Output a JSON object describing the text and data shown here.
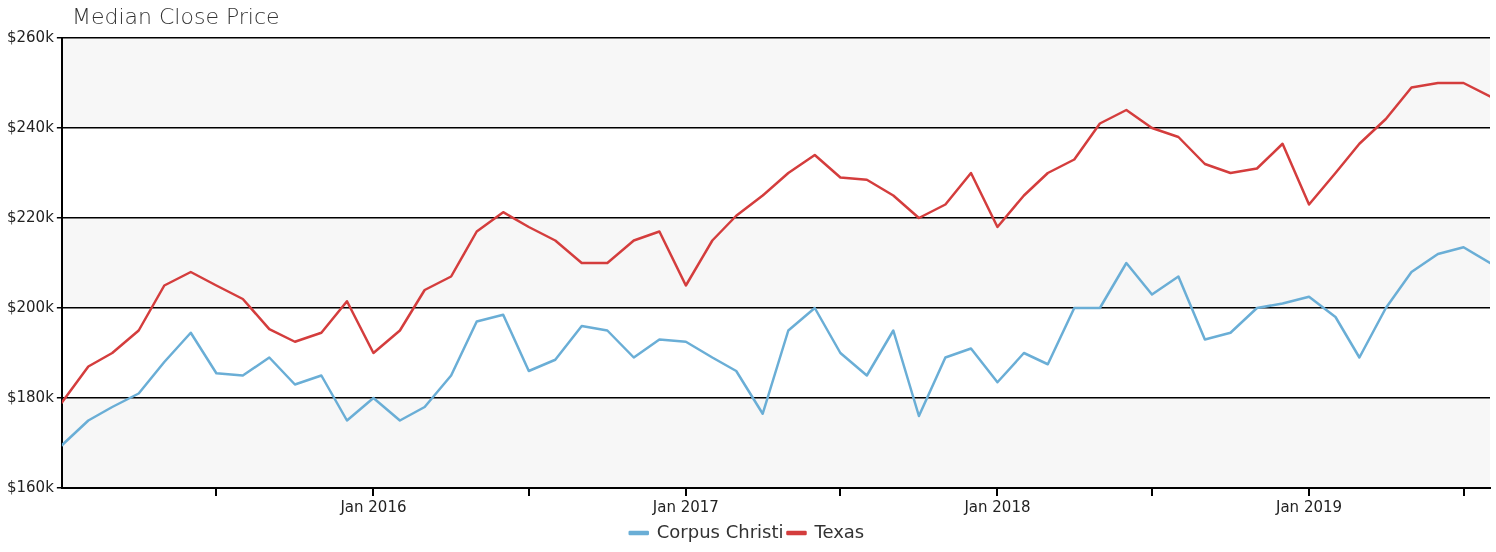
{
  "chart_data": {
    "type": "line",
    "title": "Median Close Price",
    "x": [
      "2015-01",
      "2015-02",
      "2015-03",
      "2015-04",
      "2015-05",
      "2015-06",
      "2015-07",
      "2015-08",
      "2015-09",
      "2015-10",
      "2015-11",
      "2015-12",
      "2016-01",
      "2016-02",
      "2016-03",
      "2016-04",
      "2016-05",
      "2016-06",
      "2016-07",
      "2016-08",
      "2016-09",
      "2016-10",
      "2016-11",
      "2016-12",
      "2017-01",
      "2017-02",
      "2017-03",
      "2017-04",
      "2017-05",
      "2017-06",
      "2017-07",
      "2017-08",
      "2017-09",
      "2017-10",
      "2017-11",
      "2017-12",
      "2018-01",
      "2018-02",
      "2018-03",
      "2018-04",
      "2018-05",
      "2018-06",
      "2018-07",
      "2018-08",
      "2018-09",
      "2018-10",
      "2018-11",
      "2018-12",
      "2019-01",
      "2019-02",
      "2019-03",
      "2019-04",
      "2019-05",
      "2019-06",
      "2019-07",
      "2019-08"
    ],
    "series": [
      {
        "name": "Corpus Christi",
        "color": "#6aaed6",
        "values": [
          169500,
          175000,
          178000,
          181000,
          188000,
          194500,
          185500,
          185000,
          189000,
          183000,
          185000,
          175000,
          180000,
          175000,
          178000,
          185000,
          197000,
          198500,
          186000,
          188500,
          196000,
          195000,
          189000,
          193000,
          192500,
          189000,
          186000,
          176500,
          195000,
          200000,
          190000,
          185000,
          195000,
          176000,
          189000,
          191000,
          183500,
          190000,
          187500,
          200000,
          200000,
          210000,
          203000,
          207000,
          193000,
          194500,
          200000,
          201000,
          202500,
          198000,
          189000,
          200000,
          208000,
          212000,
          213500,
          210000
        ]
      },
      {
        "name": "Texas",
        "color": "#d43d3d",
        "values": [
          179000,
          187000,
          190000,
          195000,
          205000,
          208000,
          205000,
          202000,
          195300,
          192500,
          194500,
          201500,
          190000,
          195000,
          204000,
          207000,
          217000,
          221300,
          218000,
          215000,
          210000,
          210000,
          215000,
          217000,
          205000,
          215000,
          220500,
          225000,
          230000,
          234000,
          229000,
          228500,
          225000,
          220000,
          223000,
          230000,
          218000,
          225000,
          230000,
          233000,
          241000,
          244000,
          240000,
          238000,
          232000,
          230000,
          231000,
          236500,
          223000,
          230000,
          236500,
          242000,
          249000,
          250000,
          250000,
          247000
        ]
      }
    ],
    "xlim": [
      "2015-01",
      "2019-08"
    ],
    "xticks": [
      {
        "value": "2015-07",
        "label": null
      },
      {
        "value": "2016-01",
        "label": "Jan 2016"
      },
      {
        "value": "2016-07",
        "label": null
      },
      {
        "value": "2017-01",
        "label": "Jan 2017"
      },
      {
        "value": "2017-07",
        "label": null
      },
      {
        "value": "2018-01",
        "label": "Jan 2018"
      },
      {
        "value": "2018-07",
        "label": null
      },
      {
        "value": "2019-01",
        "label": "Jan 2019"
      },
      {
        "value": "2019-07",
        "label": null
      }
    ],
    "ylim": [
      160000,
      260000
    ],
    "yticks": [
      {
        "value": 160000,
        "label": "$160k"
      },
      {
        "value": 180000,
        "label": "$180k"
      },
      {
        "value": 200000,
        "label": "$200k"
      },
      {
        "value": 220000,
        "label": "$220k"
      },
      {
        "value": 240000,
        "label": "$240k"
      },
      {
        "value": 260000,
        "label": "$260k"
      }
    ],
    "grid": "y",
    "legend": "bottom",
    "marker": "none",
    "line_style": "solid"
  }
}
